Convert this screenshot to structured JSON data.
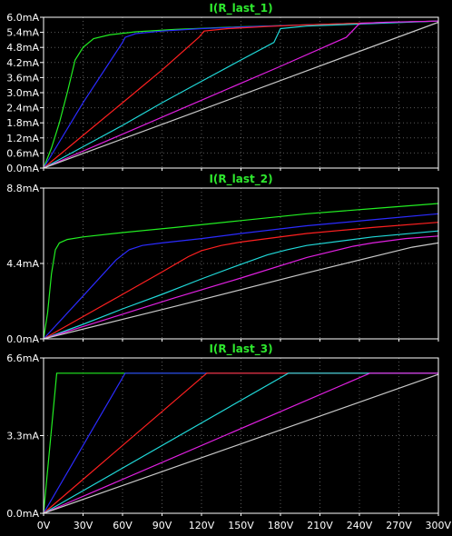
{
  "window": {
    "background": "#000000",
    "frame_color": "#ffffff",
    "grid_color": "#5a5a5a",
    "title_color": "#2ee82e"
  },
  "x_axis": {
    "ticks": [
      0,
      30,
      60,
      90,
      120,
      150,
      180,
      210,
      240,
      270,
      300
    ],
    "tick_labels": [
      "0V",
      "30V",
      "60V",
      "90V",
      "120V",
      "150V",
      "180V",
      "210V",
      "240V",
      "270V",
      "300V"
    ],
    "range": [
      0,
      300
    ]
  },
  "chart_data": [
    {
      "type": "line",
      "title": "I(R_last_1)",
      "xlim": [
        0,
        300
      ],
      "ylim": [
        0,
        6.0
      ],
      "y_ticks": [
        0,
        0.6,
        1.2,
        1.8,
        2.4,
        3.0,
        3.6,
        4.2,
        4.8,
        5.4,
        6.0
      ],
      "y_tick_labels": [
        "0.0mA",
        "0.6mA",
        "1.2mA",
        "1.8mA",
        "2.4mA",
        "3.0mA",
        "3.6mA",
        "4.2mA",
        "4.8mA",
        "5.4mA",
        "6.0mA"
      ],
      "grid": true,
      "series": [
        {
          "color": "#22ee22",
          "x": [
            0,
            6,
            12,
            18,
            24,
            30,
            38,
            50,
            70,
            100,
            150,
            200,
            250,
            300
          ],
          "y": [
            0,
            0.8,
            1.8,
            3.0,
            4.3,
            4.8,
            5.15,
            5.3,
            5.42,
            5.52,
            5.62,
            5.7,
            5.78,
            5.85
          ]
        },
        {
          "color": "#2b2bff",
          "x": [
            0,
            30,
            60,
            62,
            70,
            90,
            120,
            160,
            200,
            250,
            300
          ],
          "y": [
            0,
            2.6,
            5.0,
            5.2,
            5.35,
            5.45,
            5.55,
            5.63,
            5.7,
            5.78,
            5.85
          ]
        },
        {
          "color": "#ff2020",
          "x": [
            0,
            30,
            60,
            90,
            118,
            122,
            140,
            170,
            200,
            250,
            300
          ],
          "y": [
            0,
            1.3,
            2.6,
            3.9,
            5.2,
            5.45,
            5.55,
            5.63,
            5.7,
            5.78,
            5.85
          ]
        },
        {
          "color": "#20d8d8",
          "x": [
            0,
            30,
            60,
            90,
            120,
            150,
            175,
            180,
            200,
            250,
            300
          ],
          "y": [
            0,
            0.85,
            1.7,
            2.6,
            3.45,
            4.3,
            5.0,
            5.55,
            5.65,
            5.75,
            5.85
          ]
        },
        {
          "color": "#e020e0",
          "x": [
            0,
            60,
            120,
            180,
            230,
            240,
            260,
            300
          ],
          "y": [
            0,
            1.35,
            2.7,
            4.05,
            5.2,
            5.75,
            5.8,
            5.85
          ]
        },
        {
          "color": "#c8c8c8",
          "x": [
            0,
            100,
            200,
            300
          ],
          "y": [
            0,
            1.93,
            3.87,
            5.8
          ]
        }
      ]
    },
    {
      "type": "line",
      "title": "I(R_last_2)",
      "xlim": [
        0,
        300
      ],
      "ylim": [
        0,
        8.8
      ],
      "y_ticks": [
        0,
        4.4,
        8.8
      ],
      "y_tick_labels": [
        "0.0mA",
        "4.4mA",
        "8.8mA"
      ],
      "grid": true,
      "series": [
        {
          "color": "#22ee22",
          "x": [
            0,
            3,
            6,
            9,
            12,
            18,
            30,
            60,
            100,
            150,
            200,
            250,
            300
          ],
          "y": [
            0,
            1.5,
            3.8,
            5.2,
            5.6,
            5.8,
            5.95,
            6.2,
            6.5,
            6.9,
            7.3,
            7.6,
            7.9
          ]
        },
        {
          "color": "#2b2bff",
          "x": [
            0,
            30,
            55,
            65,
            75,
            90,
            120,
            150,
            200,
            250,
            300
          ],
          "y": [
            0,
            2.5,
            4.6,
            5.2,
            5.45,
            5.6,
            5.85,
            6.15,
            6.6,
            6.95,
            7.3
          ]
        },
        {
          "color": "#ff2020",
          "x": [
            0,
            30,
            60,
            90,
            110,
            120,
            135,
            150,
            200,
            250,
            300
          ],
          "y": [
            0,
            1.3,
            2.6,
            3.9,
            4.8,
            5.15,
            5.45,
            5.65,
            6.15,
            6.5,
            6.8
          ]
        },
        {
          "color": "#20d8d8",
          "x": [
            0,
            30,
            60,
            90,
            120,
            150,
            170,
            185,
            200,
            250,
            300
          ],
          "y": [
            0,
            0.85,
            1.75,
            2.6,
            3.5,
            4.35,
            4.9,
            5.2,
            5.45,
            5.95,
            6.3
          ]
        },
        {
          "color": "#e020e0",
          "x": [
            0,
            50,
            100,
            150,
            200,
            235,
            250,
            275,
            300
          ],
          "y": [
            0,
            1.2,
            2.4,
            3.55,
            4.75,
            5.4,
            5.6,
            5.85,
            6.0
          ]
        },
        {
          "color": "#c8c8c8",
          "x": [
            0,
            100,
            200,
            280,
            300
          ],
          "y": [
            0,
            1.9,
            3.85,
            5.35,
            5.6
          ]
        }
      ]
    },
    {
      "type": "line",
      "title": "I(R_last_3)",
      "xlim": [
        0,
        300
      ],
      "ylim": [
        0,
        6.6
      ],
      "y_ticks": [
        0,
        3.3,
        6.6
      ],
      "y_tick_labels": [
        "0.0mA",
        "3.3mA",
        "6.6mA"
      ],
      "grid": true,
      "series": [
        {
          "color": "#22ee22",
          "x": [
            0,
            10,
            12,
            300
          ],
          "y": [
            0,
            5.95,
            5.95,
            5.95
          ]
        },
        {
          "color": "#2b2bff",
          "x": [
            0,
            62,
            64,
            300
          ],
          "y": [
            0,
            5.95,
            5.95,
            5.95
          ]
        },
        {
          "color": "#ff2020",
          "x": [
            0,
            124,
            126,
            300
          ],
          "y": [
            0,
            5.95,
            5.95,
            5.95
          ]
        },
        {
          "color": "#20d8d8",
          "x": [
            0,
            186,
            188,
            300
          ],
          "y": [
            0,
            5.95,
            5.95,
            5.95
          ]
        },
        {
          "color": "#e020e0",
          "x": [
            0,
            248,
            250,
            300
          ],
          "y": [
            0,
            5.95,
            5.95,
            5.95
          ]
        },
        {
          "color": "#c8c8c8",
          "x": [
            0,
            300
          ],
          "y": [
            0,
            5.9
          ]
        }
      ]
    }
  ]
}
